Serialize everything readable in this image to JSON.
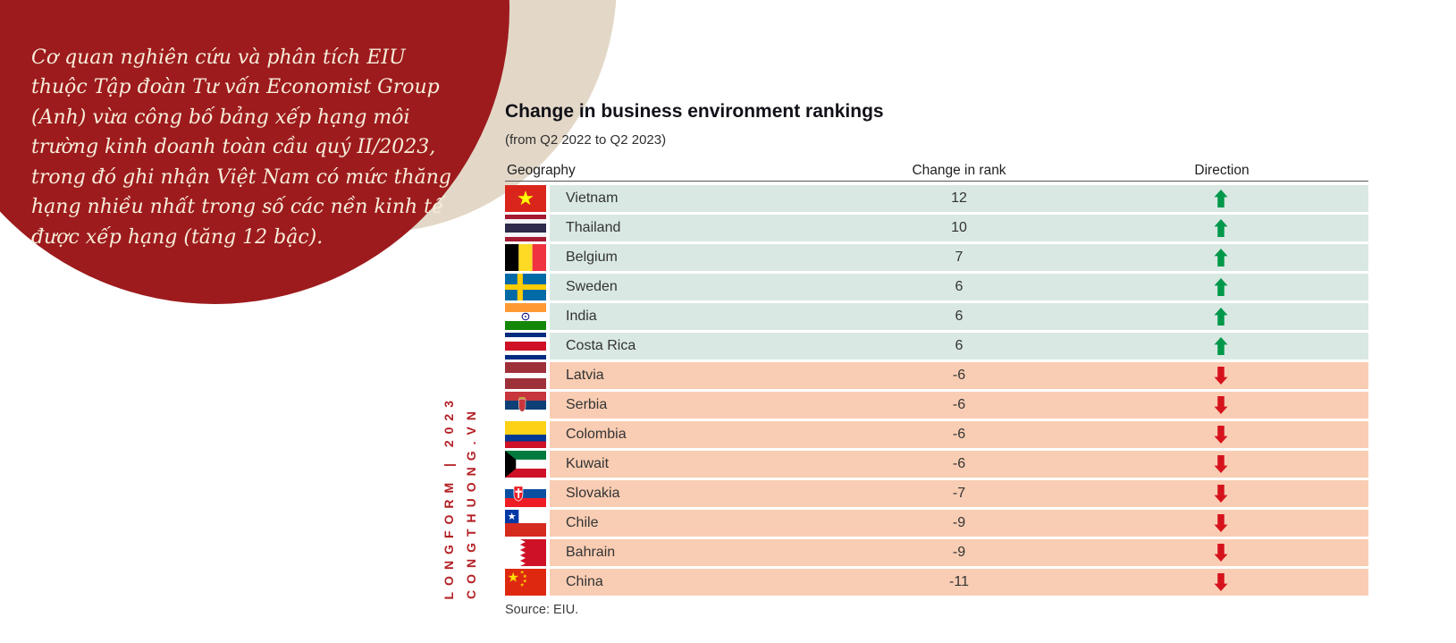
{
  "intro": {
    "text": "Cơ quan nghiên cứu và phân tích EIU thuộc Tập đoàn Tư vấn Economist Group (Anh) vừa công bố bảng xếp hạng môi trường kinh doanh toàn cầu quý II/2023, trong đó ghi nhận Việt Nam có mức thăng hạng nhiều nhất trong số các nền kinh tế được xếp hạng (tăng 12 bậc)."
  },
  "watermark": {
    "line1": "LONGFORM | 2023",
    "line2": "CONGTHUONG.VN"
  },
  "chart_data": {
    "type": "table",
    "title": "Change in business environment rankings",
    "subtitle": "(from Q2 2022 to Q2 2023)",
    "columns": [
      "Geography",
      "Change in rank",
      "Direction"
    ],
    "source": "Source: EIU.",
    "rows": [
      {
        "country": "Vietnam",
        "flag": "vietnam",
        "change": 12,
        "direction": "up"
      },
      {
        "country": "Thailand",
        "flag": "thailand",
        "change": 10,
        "direction": "up"
      },
      {
        "country": "Belgium",
        "flag": "belgium",
        "change": 7,
        "direction": "up"
      },
      {
        "country": "Sweden",
        "flag": "sweden",
        "change": 6,
        "direction": "up"
      },
      {
        "country": "India",
        "flag": "india",
        "change": 6,
        "direction": "up"
      },
      {
        "country": "Costa Rica",
        "flag": "costa-rica",
        "change": 6,
        "direction": "up"
      },
      {
        "country": "Latvia",
        "flag": "latvia",
        "change": -6,
        "direction": "down"
      },
      {
        "country": "Serbia",
        "flag": "serbia",
        "change": -6,
        "direction": "down"
      },
      {
        "country": "Colombia",
        "flag": "colombia",
        "change": -6,
        "direction": "down"
      },
      {
        "country": "Kuwait",
        "flag": "kuwait",
        "change": -6,
        "direction": "down"
      },
      {
        "country": "Slovakia",
        "flag": "slovakia",
        "change": -7,
        "direction": "down"
      },
      {
        "country": "Chile",
        "flag": "chile",
        "change": -9,
        "direction": "down"
      },
      {
        "country": "Bahrain",
        "flag": "bahrain",
        "change": -9,
        "direction": "down"
      },
      {
        "country": "China",
        "flag": "china",
        "change": -11,
        "direction": "down"
      }
    ]
  },
  "colors": {
    "circle": "#9d1b1d",
    "beige": "#e3d8c8",
    "accent": "#b42025",
    "rise_bg": "#d9e8e3",
    "fall_bg": "#f9cdb3",
    "up_arrow": "#00984a",
    "down_arrow": "#d6131d"
  }
}
